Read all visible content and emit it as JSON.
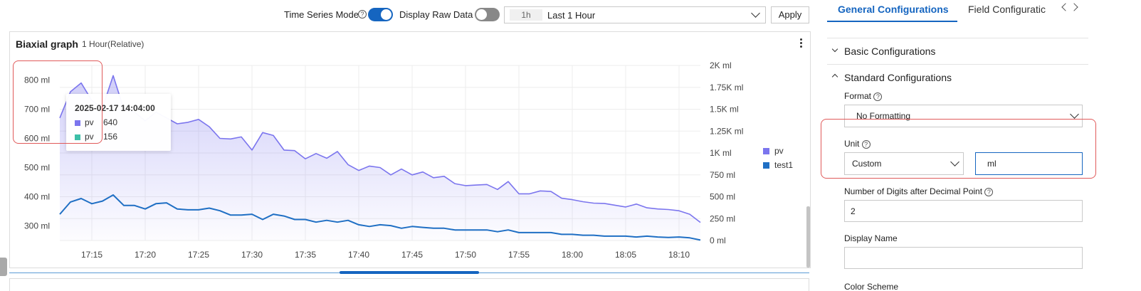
{
  "toolbar": {
    "time_series_label": "Time Series Mode",
    "time_series_on": true,
    "raw_data_label": "Display Raw Data",
    "raw_data_on": false,
    "time_range_short": "1h",
    "time_range_label": "Last 1 Hour",
    "apply_label": "Apply",
    "accent_color": "#1565c0"
  },
  "panel": {
    "title": "Biaxial graph",
    "subtitle": "1 Hour(Relative)",
    "menu_icon": "more-vertical-icon"
  },
  "tooltip": {
    "time": "2025-02-17 14:04:00",
    "rows": [
      {
        "name": "pv",
        "value": "640",
        "color": "#7b75ee"
      },
      {
        "name": "pv",
        "value": "156",
        "color": "#3dbfa8"
      }
    ]
  },
  "chart_data": {
    "type": "area",
    "x": [
      "17:12",
      "17:13",
      "17:14",
      "17:15",
      "17:16",
      "17:17",
      "17:18",
      "17:19",
      "17:20",
      "17:21",
      "17:22",
      "17:23",
      "17:24",
      "17:25",
      "17:26",
      "17:27",
      "17:28",
      "17:29",
      "17:30",
      "17:31",
      "17:32",
      "17:33",
      "17:34",
      "17:35",
      "17:36",
      "17:37",
      "17:38",
      "17:39",
      "17:40",
      "17:41",
      "17:42",
      "17:43",
      "17:44",
      "17:45",
      "17:46",
      "17:47",
      "17:48",
      "17:49",
      "17:50",
      "17:51",
      "17:52",
      "17:53",
      "17:54",
      "17:55",
      "17:56",
      "17:57",
      "17:58",
      "17:59",
      "18:00",
      "18:01",
      "18:02",
      "18:03",
      "18:04",
      "18:05",
      "18:06",
      "18:07",
      "18:08",
      "18:09",
      "18:10",
      "18:11",
      "18:12"
    ],
    "x_ticks": [
      "17:15",
      "17:20",
      "17:25",
      "17:30",
      "17:35",
      "17:40",
      "17:45",
      "17:50",
      "17:55",
      "18:00",
      "18:05",
      "18:10"
    ],
    "y_left_ticks": [
      "300 ml",
      "400 ml",
      "500 ml",
      "600 ml",
      "700 ml",
      "800 ml"
    ],
    "y_left_range": [
      250,
      850
    ],
    "y_right_ticks": [
      "0 ml",
      "250 ml",
      "500 ml",
      "750 ml",
      "1K ml",
      "1.25K ml",
      "1.5K ml",
      "1.75K ml",
      "2K ml"
    ],
    "y_right_range": [
      0,
      2000
    ],
    "grid": true,
    "legend_position": "right",
    "series": [
      {
        "name": "pv",
        "axis": "left",
        "color": "#7b75ee",
        "fill": true,
        "values": [
          670,
          760,
          790,
          730,
          705,
          815,
          700,
          690,
          660,
          690,
          670,
          650,
          655,
          665,
          640,
          600,
          598,
          605,
          560,
          620,
          610,
          560,
          558,
          530,
          548,
          532,
          555,
          510,
          490,
          505,
          500,
          475,
          495,
          475,
          485,
          465,
          470,
          445,
          438,
          440,
          442,
          425,
          452,
          410,
          410,
          420,
          418,
          395,
          390,
          383,
          378,
          377,
          371,
          365,
          375,
          362,
          358,
          356,
          352,
          340,
          312
        ]
      },
      {
        "name": "test1",
        "axis": "right",
        "color": "#1f6fc4",
        "fill": false,
        "values": [
          300,
          440,
          480,
          420,
          450,
          520,
          400,
          400,
          360,
          420,
          430,
          360,
          350,
          350,
          370,
          340,
          290,
          290,
          300,
          240,
          300,
          280,
          240,
          240,
          210,
          230,
          210,
          230,
          180,
          160,
          180,
          170,
          140,
          160,
          150,
          140,
          140,
          120,
          120,
          120,
          120,
          100,
          120,
          90,
          90,
          90,
          90,
          70,
          70,
          60,
          60,
          50,
          50,
          50,
          40,
          50,
          40,
          35,
          40,
          30,
          5
        ]
      }
    ]
  },
  "right_panel": {
    "tabs": [
      "General Configurations",
      "Field Configuratic"
    ],
    "sections": [
      "Basic Configurations",
      "Standard Configurations"
    ],
    "format_label": "Format",
    "format_value": "No Formatting",
    "unit_label": "Unit",
    "unit_type": "Custom",
    "unit_value": "ml",
    "decimal_label": "Number of Digits after Decimal Point",
    "decimal_value": "2",
    "display_name_label": "Display Name",
    "display_name_value": "",
    "color_scheme_label": "Color Scheme"
  }
}
